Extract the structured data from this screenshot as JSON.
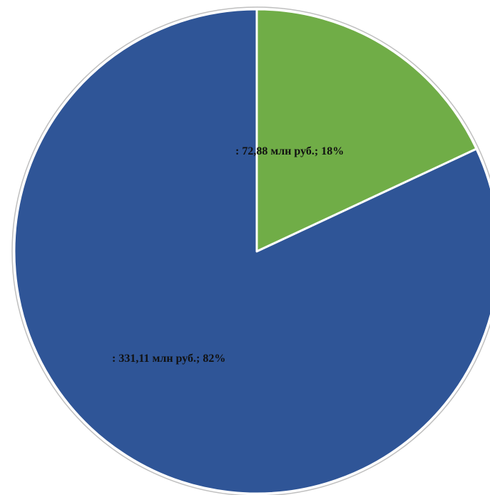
{
  "chart_data": {
    "type": "pie",
    "title": "",
    "unit": "млн руб.",
    "slices": [
      {
        "label": ": 72,88 млн руб.; 18%",
        "value": 72.88,
        "percent": 18,
        "color": "#70ad47"
      },
      {
        "label": ": 331,11 млн руб.; 82%",
        "value": 331.11,
        "percent": 82,
        "color": "#2f5597"
      }
    ],
    "legend": "none",
    "start_angle": "12 o'clock",
    "direction": "clockwise",
    "slice_border_color": "#ffffff",
    "outline_color": "#bfbfbf"
  }
}
